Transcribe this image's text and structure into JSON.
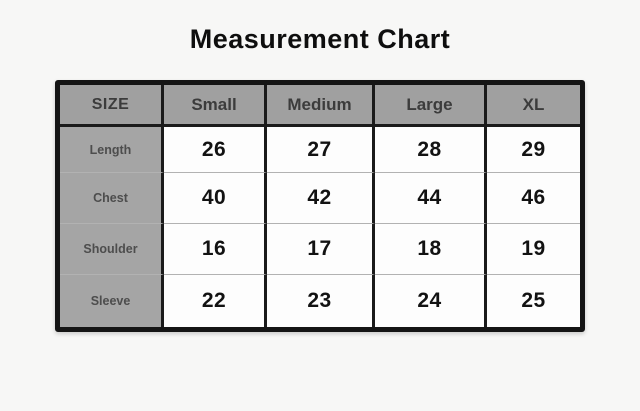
{
  "page": {
    "background": "#f7f7f6"
  },
  "chart_data": {
    "type": "table",
    "title": "Measurement Chart",
    "columns": [
      "SIZE",
      "Small",
      "Medium",
      "Large",
      "XL"
    ],
    "rows": [
      [
        "Length",
        26,
        27,
        28,
        29
      ],
      [
        "Chest",
        40,
        42,
        44,
        46
      ],
      [
        "Shoulder",
        16,
        17,
        18,
        19
      ],
      [
        "Sleeve",
        22,
        23,
        24,
        25
      ]
    ],
    "layout_hints": {
      "header_position": "top-row-and-left-column",
      "grid": "on"
    }
  },
  "colors": {
    "header_bg": "#a0a0a0",
    "header_text": "#3c3c3c",
    "label_bg": "#a5a5a5",
    "label_text": "#4d4d4d",
    "cell_bg": "#fdfdfd",
    "cell_text": "#121212",
    "border": "#151515",
    "row_divider": "#b2b2b2",
    "title_text": "#0e0e0e"
  }
}
